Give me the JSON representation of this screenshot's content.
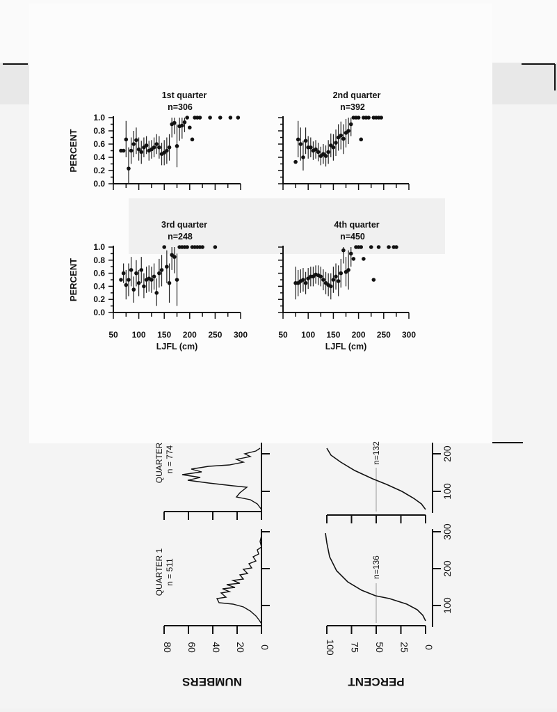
{
  "chart_data": [
    {
      "type": "scatter",
      "panel": "1st",
      "title": "1st quarter",
      "subtitle": "n=306",
      "ylabel": "PERCENT",
      "xlabel": "",
      "xlim": [
        50,
        300
      ],
      "ylim": [
        0,
        1
      ],
      "yticks": [
        "0.0",
        "0.2",
        "0.4",
        "0.6",
        "0.8",
        "1.0"
      ],
      "xticks": [],
      "grid": false,
      "points": [
        {
          "x": 65,
          "y": 0.5
        },
        {
          "x": 70,
          "y": 0.5
        },
        {
          "x": 75,
          "y": 0.67,
          "lo": 0.4,
          "hi": 0.95
        },
        {
          "x": 80,
          "y": 0.23,
          "lo": 0.0,
          "hi": 0.55
        },
        {
          "x": 85,
          "y": 0.5,
          "lo": 0.3,
          "hi": 0.7
        },
        {
          "x": 90,
          "y": 0.6,
          "lo": 0.4,
          "hi": 0.8
        },
        {
          "x": 95,
          "y": 0.66,
          "lo": 0.45,
          "hi": 0.85
        },
        {
          "x": 100,
          "y": 0.52,
          "lo": 0.35,
          "hi": 0.7
        },
        {
          "x": 105,
          "y": 0.48,
          "lo": 0.3,
          "hi": 0.65
        },
        {
          "x": 110,
          "y": 0.55,
          "lo": 0.4,
          "hi": 0.7
        },
        {
          "x": 115,
          "y": 0.58,
          "lo": 0.45,
          "hi": 0.72
        },
        {
          "x": 120,
          "y": 0.5,
          "lo": 0.35,
          "hi": 0.65
        },
        {
          "x": 125,
          "y": 0.52,
          "lo": 0.38,
          "hi": 0.66
        },
        {
          "x": 130,
          "y": 0.55,
          "lo": 0.4,
          "hi": 0.7
        },
        {
          "x": 135,
          "y": 0.6,
          "lo": 0.45,
          "hi": 0.75
        },
        {
          "x": 140,
          "y": 0.55,
          "lo": 0.38,
          "hi": 0.72
        },
        {
          "x": 145,
          "y": 0.45,
          "lo": 0.28,
          "hi": 0.62
        },
        {
          "x": 150,
          "y": 0.47,
          "lo": 0.28,
          "hi": 0.66
        },
        {
          "x": 155,
          "y": 0.5,
          "lo": 0.3,
          "hi": 0.7
        },
        {
          "x": 160,
          "y": 0.55,
          "lo": 0.35,
          "hi": 0.75
        },
        {
          "x": 165,
          "y": 0.9,
          "lo": 0.7,
          "hi": 1.0
        },
        {
          "x": 170,
          "y": 0.92,
          "lo": 0.75,
          "hi": 1.0
        },
        {
          "x": 175,
          "y": 0.57,
          "lo": 0.25,
          "hi": 0.9
        },
        {
          "x": 180,
          "y": 0.87,
          "lo": 0.65,
          "hi": 1.0
        },
        {
          "x": 185,
          "y": 0.88,
          "lo": 0.68,
          "hi": 1.0
        },
        {
          "x": 190,
          "y": 0.93,
          "lo": 0.78,
          "hi": 1.0
        },
        {
          "x": 195,
          "y": 1.0
        },
        {
          "x": 200,
          "y": 0.85
        },
        {
          "x": 205,
          "y": 0.67
        },
        {
          "x": 210,
          "y": 1.0
        },
        {
          "x": 215,
          "y": 1.0
        },
        {
          "x": 220,
          "y": 1.0
        },
        {
          "x": 240,
          "y": 1.0
        },
        {
          "x": 260,
          "y": 1.0
        },
        {
          "x": 280,
          "y": 1.0
        },
        {
          "x": 295,
          "y": 1.0
        }
      ]
    },
    {
      "type": "scatter",
      "panel": "2nd",
      "title": "2nd quarter",
      "subtitle": "n=392",
      "ylabel": "",
      "xlabel": "",
      "xlim": [
        50,
        300
      ],
      "ylim": [
        0,
        1
      ],
      "yticks": [],
      "xticks": [],
      "grid": false,
      "points": [
        {
          "x": 75,
          "y": 0.33
        },
        {
          "x": 80,
          "y": 0.67,
          "lo": 0.4,
          "hi": 0.95
        },
        {
          "x": 85,
          "y": 0.6,
          "lo": 0.35,
          "hi": 0.85
        },
        {
          "x": 90,
          "y": 0.4,
          "lo": 0.2,
          "hi": 0.65
        },
        {
          "x": 95,
          "y": 0.65,
          "lo": 0.45,
          "hi": 0.85
        },
        {
          "x": 100,
          "y": 0.55,
          "lo": 0.38,
          "hi": 0.72
        },
        {
          "x": 105,
          "y": 0.55,
          "lo": 0.4,
          "hi": 0.7
        },
        {
          "x": 110,
          "y": 0.5,
          "lo": 0.36,
          "hi": 0.64
        },
        {
          "x": 115,
          "y": 0.52,
          "lo": 0.38,
          "hi": 0.66
        },
        {
          "x": 120,
          "y": 0.48,
          "lo": 0.34,
          "hi": 0.62
        },
        {
          "x": 125,
          "y": 0.42,
          "lo": 0.28,
          "hi": 0.56
        },
        {
          "x": 130,
          "y": 0.45,
          "lo": 0.3,
          "hi": 0.6
        },
        {
          "x": 135,
          "y": 0.42,
          "lo": 0.26,
          "hi": 0.58
        },
        {
          "x": 140,
          "y": 0.48,
          "lo": 0.3,
          "hi": 0.66
        },
        {
          "x": 145,
          "y": 0.58,
          "lo": 0.4,
          "hi": 0.76
        },
        {
          "x": 150,
          "y": 0.55,
          "lo": 0.35,
          "hi": 0.75
        },
        {
          "x": 155,
          "y": 0.62,
          "lo": 0.42,
          "hi": 0.82
        },
        {
          "x": 160,
          "y": 0.7,
          "lo": 0.5,
          "hi": 0.9
        },
        {
          "x": 165,
          "y": 0.73,
          "lo": 0.52,
          "hi": 0.94
        },
        {
          "x": 170,
          "y": 0.68,
          "lo": 0.45,
          "hi": 0.9
        },
        {
          "x": 175,
          "y": 0.77,
          "lo": 0.55,
          "hi": 0.98
        },
        {
          "x": 180,
          "y": 0.8,
          "lo": 0.6,
          "hi": 1.0
        },
        {
          "x": 185,
          "y": 0.9,
          "lo": 0.72,
          "hi": 1.0
        },
        {
          "x": 190,
          "y": 1.0
        },
        {
          "x": 195,
          "y": 1.0
        },
        {
          "x": 200,
          "y": 1.0
        },
        {
          "x": 205,
          "y": 0.67
        },
        {
          "x": 210,
          "y": 1.0
        },
        {
          "x": 215,
          "y": 1.0
        },
        {
          "x": 220,
          "y": 1.0
        },
        {
          "x": 230,
          "y": 1.0
        },
        {
          "x": 235,
          "y": 1.0
        },
        {
          "x": 240,
          "y": 1.0
        },
        {
          "x": 245,
          "y": 1.0
        }
      ]
    },
    {
      "type": "scatter",
      "panel": "3rd",
      "title": "3rd quarter",
      "subtitle": "n=248",
      "ylabel": "PERCENT",
      "xlabel": "LJFL (cm)",
      "xlim": [
        50,
        300
      ],
      "ylim": [
        0,
        1
      ],
      "yticks": [
        "0.0",
        "0.2",
        "0.4",
        "0.6",
        "0.8",
        "1.0"
      ],
      "xticks": [
        "50",
        "100",
        "150",
        "200",
        "250",
        "300"
      ],
      "grid": false,
      "points": [
        {
          "x": 65,
          "y": 0.5
        },
        {
          "x": 70,
          "y": 0.6,
          "lo": 0.45,
          "hi": 0.75
        },
        {
          "x": 75,
          "y": 0.42,
          "lo": 0.2,
          "hi": 0.65
        },
        {
          "x": 80,
          "y": 0.5,
          "lo": 0.25,
          "hi": 0.75
        },
        {
          "x": 85,
          "y": 0.65,
          "lo": 0.4,
          "hi": 0.85
        },
        {
          "x": 90,
          "y": 0.35,
          "lo": 0.15,
          "hi": 0.55
        },
        {
          "x": 95,
          "y": 0.6,
          "lo": 0.4,
          "hi": 0.8
        },
        {
          "x": 100,
          "y": 0.45,
          "lo": 0.25,
          "hi": 0.65
        },
        {
          "x": 105,
          "y": 0.65,
          "lo": 0.45,
          "hi": 0.85
        },
        {
          "x": 110,
          "y": 0.4,
          "lo": 0.22,
          "hi": 0.6
        },
        {
          "x": 115,
          "y": 0.5,
          "lo": 0.3,
          "hi": 0.7
        },
        {
          "x": 120,
          "y": 0.52,
          "lo": 0.32,
          "hi": 0.72
        },
        {
          "x": 125,
          "y": 0.5,
          "lo": 0.3,
          "hi": 0.7
        },
        {
          "x": 130,
          "y": 0.55,
          "lo": 0.35,
          "hi": 0.75
        },
        {
          "x": 135,
          "y": 0.3,
          "lo": 0.1,
          "hi": 0.52
        },
        {
          "x": 140,
          "y": 0.6,
          "lo": 0.38,
          "hi": 0.82
        },
        {
          "x": 145,
          "y": 0.65,
          "lo": 0.4,
          "hi": 0.88
        },
        {
          "x": 150,
          "y": 1.0
        },
        {
          "x": 155,
          "y": 0.7,
          "lo": 0.45,
          "hi": 0.95
        },
        {
          "x": 160,
          "y": 0.45,
          "lo": 0.15,
          "hi": 0.75
        },
        {
          "x": 165,
          "y": 0.88,
          "lo": 0.65,
          "hi": 1.0
        },
        {
          "x": 170,
          "y": 0.85,
          "lo": 0.6,
          "hi": 1.0
        },
        {
          "x": 175,
          "y": 0.5,
          "lo": 0.1,
          "hi": 0.9
        },
        {
          "x": 180,
          "y": 1.0
        },
        {
          "x": 185,
          "y": 1.0
        },
        {
          "x": 190,
          "y": 1.0
        },
        {
          "x": 195,
          "y": 1.0
        },
        {
          "x": 205,
          "y": 1.0
        },
        {
          "x": 210,
          "y": 1.0
        },
        {
          "x": 215,
          "y": 1.0
        },
        {
          "x": 220,
          "y": 1.0
        },
        {
          "x": 225,
          "y": 1.0
        },
        {
          "x": 250,
          "y": 1.0
        }
      ]
    },
    {
      "type": "scatter",
      "panel": "4th",
      "title": "4th quarter",
      "subtitle": "n=450",
      "ylabel": "",
      "xlabel": "LJFL (cm)",
      "xlim": [
        50,
        300
      ],
      "ylim": [
        0,
        1
      ],
      "yticks": [],
      "xticks": [
        "50",
        "100",
        "150",
        "200",
        "250",
        "300"
      ],
      "grid": false,
      "points": [
        {
          "x": 75,
          "y": 0.45,
          "lo": 0.2,
          "hi": 0.7
        },
        {
          "x": 80,
          "y": 0.45,
          "lo": 0.25,
          "hi": 0.65
        },
        {
          "x": 85,
          "y": 0.48,
          "lo": 0.3,
          "hi": 0.66
        },
        {
          "x": 90,
          "y": 0.5,
          "lo": 0.32,
          "hi": 0.68
        },
        {
          "x": 95,
          "y": 0.45,
          "lo": 0.28,
          "hi": 0.62
        },
        {
          "x": 100,
          "y": 0.52,
          "lo": 0.36,
          "hi": 0.68
        },
        {
          "x": 105,
          "y": 0.55,
          "lo": 0.4,
          "hi": 0.7
        },
        {
          "x": 110,
          "y": 0.55,
          "lo": 0.4,
          "hi": 0.7
        },
        {
          "x": 115,
          "y": 0.58,
          "lo": 0.44,
          "hi": 0.72
        },
        {
          "x": 120,
          "y": 0.57,
          "lo": 0.42,
          "hi": 0.72
        },
        {
          "x": 125,
          "y": 0.55,
          "lo": 0.4,
          "hi": 0.7
        },
        {
          "x": 130,
          "y": 0.5,
          "lo": 0.34,
          "hi": 0.66
        },
        {
          "x": 135,
          "y": 0.45,
          "lo": 0.28,
          "hi": 0.62
        },
        {
          "x": 140,
          "y": 0.42,
          "lo": 0.25,
          "hi": 0.6
        },
        {
          "x": 145,
          "y": 0.4,
          "lo": 0.2,
          "hi": 0.6
        },
        {
          "x": 150,
          "y": 0.5,
          "lo": 0.3,
          "hi": 0.7
        },
        {
          "x": 155,
          "y": 0.55,
          "lo": 0.35,
          "hi": 0.75
        },
        {
          "x": 160,
          "y": 0.48,
          "lo": 0.25,
          "hi": 0.72
        },
        {
          "x": 165,
          "y": 0.6,
          "lo": 0.38,
          "hi": 0.82
        },
        {
          "x": 170,
          "y": 0.95,
          "lo": 0.75,
          "hi": 1.0
        },
        {
          "x": 175,
          "y": 0.62,
          "lo": 0.4,
          "hi": 0.85
        },
        {
          "x": 180,
          "y": 0.65,
          "lo": 0.35,
          "hi": 0.95
        },
        {
          "x": 185,
          "y": 0.9,
          "lo": 0.7,
          "hi": 1.0
        },
        {
          "x": 190,
          "y": 0.82
        },
        {
          "x": 195,
          "y": 1.0
        },
        {
          "x": 200,
          "y": 1.0
        },
        {
          "x": 205,
          "y": 1.0
        },
        {
          "x": 210,
          "y": 0.82
        },
        {
          "x": 225,
          "y": 1.0
        },
        {
          "x": 230,
          "y": 0.5
        },
        {
          "x": 240,
          "y": 1.0
        },
        {
          "x": 260,
          "y": 1.0
        },
        {
          "x": 270,
          "y": 1.0
        },
        {
          "x": 275,
          "y": 1.0
        }
      ]
    }
  ],
  "lower_figure": {
    "numbers_axis_label": "NUMBERS",
    "percent_axis_label": "PERCENT",
    "numbers_ticks": [
      "80",
      "60",
      "40",
      "20",
      "0"
    ],
    "percent_ticks": [
      "100",
      "75",
      "50",
      "25",
      "0"
    ],
    "panels": [
      {
        "title": "QUARTER 1",
        "n_label": "n = 511",
        "cum_n_label": "n=136",
        "length_ticks": [
          "100",
          "200",
          "300"
        ]
      },
      {
        "title": "QUARTER",
        "n_label": "n = 774",
        "cum_n_label": "n=132",
        "length_ticks": [
          "100",
          "200"
        ]
      }
    ]
  }
}
